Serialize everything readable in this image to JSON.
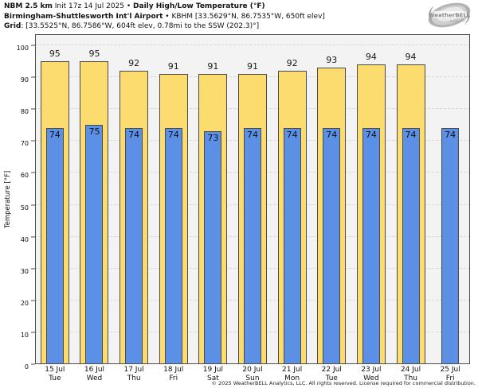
{
  "title": {
    "model": "NBM 2.5 km",
    "init": " Init 17z 14 Jul 2025",
    "sep1": " • ",
    "product": "Daily High/Low Temperature (°F)",
    "station_name": "Birmingham-Shuttlesworth Int'l Airport",
    "sep2": " • ",
    "station_info": "KBHM [33.5629°N, 86.7535°W, 650ft elev]",
    "grid_label": "Grid",
    "grid_info": ": [33.5525°N, 86.7586°W, 604ft elev, 0.78mi to the SSW (202.3)°]"
  },
  "logo": {
    "brand": "WeatherBELL",
    "sub": "Analytics LLC"
  },
  "footer": {
    "copyright": "© 2025 WeatherBELL Analytics, LLC. All rights reserved. License required for commercial distribution."
  },
  "colors": {
    "high_bar": "#FCDC6E",
    "low_bar": "#5C8FE6",
    "bar_border": "#4a4a4a",
    "plot_bg": "#f3f3f3",
    "grid": "#d6d6d6",
    "axis": "#4d4d4d"
  },
  "chart_data": {
    "type": "bar",
    "title": "NBM 2.5 km Daily High/Low Temperature (°F) — KBHM Birmingham-Shuttlesworth Int'l Airport",
    "xlabel": "",
    "ylabel": "Temperature [°F]",
    "ylim": [
      0,
      103
    ],
    "yticks": [
      0,
      10,
      20,
      30,
      40,
      50,
      60,
      70,
      80,
      90,
      100
    ],
    "grid": "horizontal-dashed",
    "legend_position": "none",
    "categories": [
      "15 Jul",
      "16 Jul",
      "17 Jul",
      "18 Jul",
      "19 Jul",
      "20 Jul",
      "21 Jul",
      "22 Jul",
      "23 Jul",
      "24 Jul",
      "25 Jul"
    ],
    "weekdays": [
      "Tue",
      "Wed",
      "Thu",
      "Fri",
      "Sat",
      "Sun",
      "Mon",
      "Tue",
      "Wed",
      "Thu",
      "Fri"
    ],
    "series": [
      {
        "name": "Daily High",
        "color": "#FCDC6E",
        "values": [
          95,
          95,
          92,
          91,
          91,
          91,
          92,
          93,
          94,
          94,
          null
        ]
      },
      {
        "name": "Daily Low",
        "color": "#5C8FE6",
        "values": [
          74,
          75,
          74,
          74,
          73,
          74,
          74,
          74,
          74,
          74,
          74
        ]
      }
    ]
  }
}
